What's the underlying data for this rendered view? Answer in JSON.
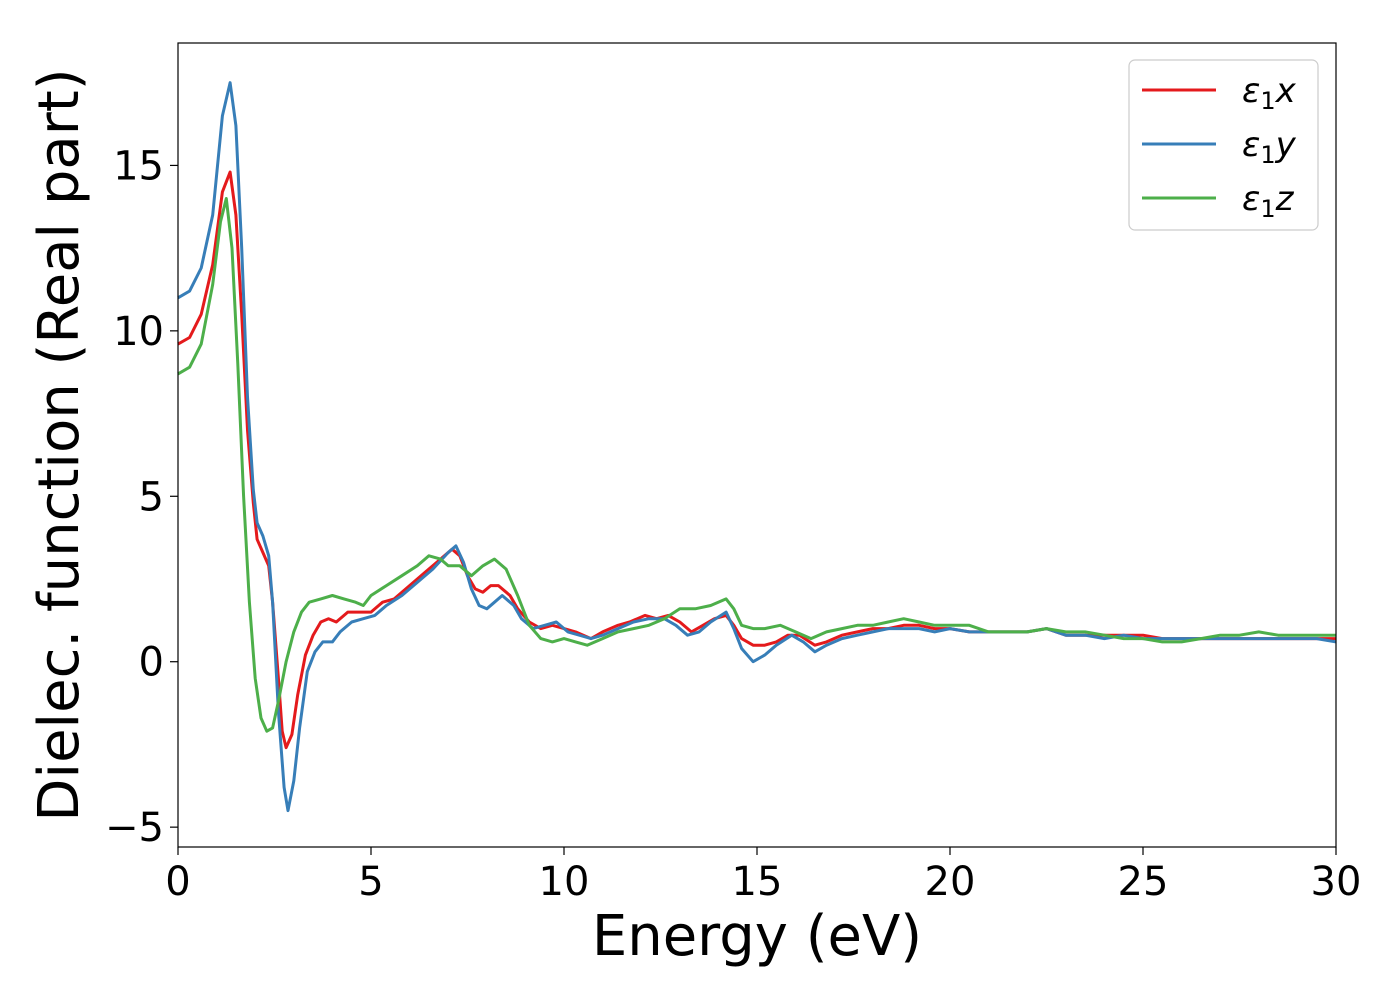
{
  "chart_data": {
    "type": "line",
    "title": "",
    "xlabel": "Energy (eV)",
    "ylabel": "Dielec. function (Real part)",
    "xlim": [
      0,
      30
    ],
    "ylim": [
      -5.6,
      18.7
    ],
    "xticks": [
      0,
      5,
      10,
      15,
      20,
      25,
      30
    ],
    "xtick_labels": [
      "0",
      "5",
      "10",
      "15",
      "20",
      "25",
      "30"
    ],
    "yticks": [
      -5,
      0,
      5,
      10,
      15
    ],
    "ytick_labels": [
      "−5",
      "0",
      "5",
      "10",
      "15"
    ],
    "grid": false,
    "legend_position": "top-right",
    "series": [
      {
        "name": "ε₁x",
        "legend_base": "ε",
        "legend_sub": "1",
        "legend_var": "x",
        "color": "#e41a1c",
        "points": [
          [
            0,
            9.6
          ],
          [
            0.3,
            9.8
          ],
          [
            0.6,
            10.5
          ],
          [
            0.9,
            12.0
          ],
          [
            1.15,
            14.2
          ],
          [
            1.35,
            14.8
          ],
          [
            1.5,
            13.5
          ],
          [
            1.65,
            10.5
          ],
          [
            1.8,
            7.0
          ],
          [
            1.95,
            4.8
          ],
          [
            2.05,
            3.7
          ],
          [
            2.2,
            3.3
          ],
          [
            2.35,
            2.9
          ],
          [
            2.45,
            1.8
          ],
          [
            2.6,
            -0.5
          ],
          [
            2.7,
            -2.1
          ],
          [
            2.8,
            -2.6
          ],
          [
            2.95,
            -2.2
          ],
          [
            3.1,
            -1.0
          ],
          [
            3.3,
            0.2
          ],
          [
            3.5,
            0.8
          ],
          [
            3.7,
            1.2
          ],
          [
            3.9,
            1.3
          ],
          [
            4.1,
            1.2
          ],
          [
            4.4,
            1.5
          ],
          [
            4.7,
            1.5
          ],
          [
            5.0,
            1.5
          ],
          [
            5.3,
            1.8
          ],
          [
            5.6,
            1.9
          ],
          [
            6.0,
            2.3
          ],
          [
            6.4,
            2.7
          ],
          [
            6.8,
            3.1
          ],
          [
            7.1,
            3.4
          ],
          [
            7.3,
            3.2
          ],
          [
            7.5,
            2.6
          ],
          [
            7.7,
            2.2
          ],
          [
            7.9,
            2.1
          ],
          [
            8.1,
            2.3
          ],
          [
            8.3,
            2.3
          ],
          [
            8.6,
            2.0
          ],
          [
            8.8,
            1.6
          ],
          [
            9.1,
            1.2
          ],
          [
            9.4,
            1.0
          ],
          [
            9.7,
            1.1
          ],
          [
            10.0,
            1.0
          ],
          [
            10.3,
            0.9
          ],
          [
            10.7,
            0.7
          ],
          [
            11.0,
            0.9
          ],
          [
            11.4,
            1.1
          ],
          [
            11.7,
            1.2
          ],
          [
            12.1,
            1.4
          ],
          [
            12.4,
            1.3
          ],
          [
            12.7,
            1.4
          ],
          [
            13.0,
            1.2
          ],
          [
            13.3,
            0.9
          ],
          [
            13.6,
            1.1
          ],
          [
            13.9,
            1.3
          ],
          [
            14.2,
            1.4
          ],
          [
            14.4,
            1.1
          ],
          [
            14.6,
            0.7
          ],
          [
            14.9,
            0.5
          ],
          [
            15.2,
            0.5
          ],
          [
            15.5,
            0.6
          ],
          [
            15.8,
            0.8
          ],
          [
            16.1,
            0.8
          ],
          [
            16.5,
            0.5
          ],
          [
            16.8,
            0.6
          ],
          [
            17.2,
            0.8
          ],
          [
            17.6,
            0.9
          ],
          [
            18.0,
            1.0
          ],
          [
            18.4,
            1.0
          ],
          [
            18.8,
            1.1
          ],
          [
            19.2,
            1.1
          ],
          [
            19.6,
            1.0
          ],
          [
            20.0,
            1.0
          ],
          [
            20.5,
            0.9
          ],
          [
            21.0,
            0.9
          ],
          [
            21.5,
            0.9
          ],
          [
            22.0,
            0.9
          ],
          [
            22.5,
            1.0
          ],
          [
            23.0,
            0.8
          ],
          [
            23.5,
            0.8
          ],
          [
            24.0,
            0.8
          ],
          [
            24.5,
            0.8
          ],
          [
            25.0,
            0.8
          ],
          [
            25.5,
            0.7
          ],
          [
            26.0,
            0.7
          ],
          [
            26.5,
            0.7
          ],
          [
            27.0,
            0.7
          ],
          [
            27.5,
            0.7
          ],
          [
            28.0,
            0.7
          ],
          [
            28.5,
            0.7
          ],
          [
            29.0,
            0.7
          ],
          [
            29.5,
            0.7
          ],
          [
            30.0,
            0.7
          ]
        ]
      },
      {
        "name": "ε₁y",
        "legend_base": "ε",
        "legend_sub": "1",
        "legend_var": "y",
        "color": "#377eb8",
        "points": [
          [
            0,
            11.0
          ],
          [
            0.3,
            11.2
          ],
          [
            0.6,
            11.9
          ],
          [
            0.9,
            13.5
          ],
          [
            1.15,
            16.5
          ],
          [
            1.35,
            17.5
          ],
          [
            1.5,
            16.2
          ],
          [
            1.65,
            12.5
          ],
          [
            1.8,
            8.0
          ],
          [
            1.95,
            5.2
          ],
          [
            2.05,
            4.2
          ],
          [
            2.2,
            3.8
          ],
          [
            2.35,
            3.2
          ],
          [
            2.45,
            1.8
          ],
          [
            2.6,
            -1.5
          ],
          [
            2.75,
            -3.8
          ],
          [
            2.85,
            -4.5
          ],
          [
            3.0,
            -3.6
          ],
          [
            3.15,
            -2.0
          ],
          [
            3.35,
            -0.3
          ],
          [
            3.55,
            0.3
          ],
          [
            3.75,
            0.6
          ],
          [
            4.0,
            0.6
          ],
          [
            4.2,
            0.9
          ],
          [
            4.5,
            1.2
          ],
          [
            4.8,
            1.3
          ],
          [
            5.1,
            1.4
          ],
          [
            5.4,
            1.7
          ],
          [
            5.8,
            2.0
          ],
          [
            6.2,
            2.4
          ],
          [
            6.6,
            2.8
          ],
          [
            7.0,
            3.3
          ],
          [
            7.2,
            3.5
          ],
          [
            7.4,
            3.0
          ],
          [
            7.6,
            2.2
          ],
          [
            7.8,
            1.7
          ],
          [
            8.0,
            1.6
          ],
          [
            8.2,
            1.8
          ],
          [
            8.4,
            2.0
          ],
          [
            8.7,
            1.7
          ],
          [
            8.9,
            1.3
          ],
          [
            9.2,
            1.0
          ],
          [
            9.5,
            1.1
          ],
          [
            9.8,
            1.2
          ],
          [
            10.1,
            0.9
          ],
          [
            10.4,
            0.8
          ],
          [
            10.7,
            0.7
          ],
          [
            11.0,
            0.8
          ],
          [
            11.4,
            1.0
          ],
          [
            11.8,
            1.2
          ],
          [
            12.2,
            1.3
          ],
          [
            12.6,
            1.3
          ],
          [
            12.9,
            1.1
          ],
          [
            13.2,
            0.8
          ],
          [
            13.5,
            0.9
          ],
          [
            13.8,
            1.2
          ],
          [
            14.2,
            1.5
          ],
          [
            14.4,
            1.0
          ],
          [
            14.6,
            0.4
          ],
          [
            14.9,
            0.0
          ],
          [
            15.2,
            0.2
          ],
          [
            15.5,
            0.5
          ],
          [
            15.9,
            0.8
          ],
          [
            16.2,
            0.6
          ],
          [
            16.5,
            0.3
          ],
          [
            16.8,
            0.5
          ],
          [
            17.2,
            0.7
          ],
          [
            17.6,
            0.8
          ],
          [
            18.0,
            0.9
          ],
          [
            18.4,
            1.0
          ],
          [
            18.8,
            1.0
          ],
          [
            19.2,
            1.0
          ],
          [
            19.6,
            0.9
          ],
          [
            20.0,
            1.0
          ],
          [
            20.5,
            0.9
          ],
          [
            21.0,
            0.9
          ],
          [
            21.5,
            0.9
          ],
          [
            22.0,
            0.9
          ],
          [
            22.5,
            1.0
          ],
          [
            23.0,
            0.8
          ],
          [
            23.5,
            0.8
          ],
          [
            24.0,
            0.7
          ],
          [
            24.5,
            0.8
          ],
          [
            25.0,
            0.7
          ],
          [
            25.5,
            0.7
          ],
          [
            26.0,
            0.7
          ],
          [
            26.5,
            0.7
          ],
          [
            27.0,
            0.7
          ],
          [
            27.5,
            0.7
          ],
          [
            28.0,
            0.7
          ],
          [
            28.5,
            0.7
          ],
          [
            29.0,
            0.7
          ],
          [
            29.5,
            0.7
          ],
          [
            30.0,
            0.6
          ]
        ]
      },
      {
        "name": "ε₁z",
        "legend_base": "ε",
        "legend_sub": "1",
        "legend_var": "z",
        "color": "#4daf4a",
        "points": [
          [
            0,
            8.7
          ],
          [
            0.3,
            8.9
          ],
          [
            0.6,
            9.6
          ],
          [
            0.9,
            11.4
          ],
          [
            1.1,
            13.3
          ],
          [
            1.25,
            14.0
          ],
          [
            1.4,
            12.5
          ],
          [
            1.55,
            9.0
          ],
          [
            1.7,
            5.0
          ],
          [
            1.85,
            1.8
          ],
          [
            2.0,
            -0.5
          ],
          [
            2.15,
            -1.7
          ],
          [
            2.3,
            -2.1
          ],
          [
            2.45,
            -2.0
          ],
          [
            2.6,
            -1.2
          ],
          [
            2.8,
            0.0
          ],
          [
            3.0,
            0.9
          ],
          [
            3.2,
            1.5
          ],
          [
            3.4,
            1.8
          ],
          [
            3.7,
            1.9
          ],
          [
            4.0,
            2.0
          ],
          [
            4.3,
            1.9
          ],
          [
            4.6,
            1.8
          ],
          [
            4.8,
            1.7
          ],
          [
            5.0,
            2.0
          ],
          [
            5.4,
            2.3
          ],
          [
            5.8,
            2.6
          ],
          [
            6.2,
            2.9
          ],
          [
            6.5,
            3.2
          ],
          [
            6.8,
            3.1
          ],
          [
            7.0,
            2.9
          ],
          [
            7.3,
            2.9
          ],
          [
            7.6,
            2.6
          ],
          [
            7.9,
            2.9
          ],
          [
            8.2,
            3.1
          ],
          [
            8.5,
            2.8
          ],
          [
            8.8,
            2.0
          ],
          [
            9.1,
            1.1
          ],
          [
            9.4,
            0.7
          ],
          [
            9.7,
            0.6
          ],
          [
            10.0,
            0.7
          ],
          [
            10.3,
            0.6
          ],
          [
            10.6,
            0.5
          ],
          [
            11.0,
            0.7
          ],
          [
            11.4,
            0.9
          ],
          [
            11.8,
            1.0
          ],
          [
            12.2,
            1.1
          ],
          [
            12.6,
            1.3
          ],
          [
            13.0,
            1.6
          ],
          [
            13.4,
            1.6
          ],
          [
            13.8,
            1.7
          ],
          [
            14.2,
            1.9
          ],
          [
            14.4,
            1.6
          ],
          [
            14.6,
            1.1
          ],
          [
            14.9,
            1.0
          ],
          [
            15.2,
            1.0
          ],
          [
            15.6,
            1.1
          ],
          [
            16.0,
            0.9
          ],
          [
            16.4,
            0.7
          ],
          [
            16.8,
            0.9
          ],
          [
            17.2,
            1.0
          ],
          [
            17.6,
            1.1
          ],
          [
            18.0,
            1.1
          ],
          [
            18.4,
            1.2
          ],
          [
            18.8,
            1.3
          ],
          [
            19.2,
            1.2
          ],
          [
            19.6,
            1.1
          ],
          [
            20.0,
            1.1
          ],
          [
            20.5,
            1.1
          ],
          [
            21.0,
            0.9
          ],
          [
            21.5,
            0.9
          ],
          [
            22.0,
            0.9
          ],
          [
            22.5,
            1.0
          ],
          [
            23.0,
            0.9
          ],
          [
            23.5,
            0.9
          ],
          [
            24.0,
            0.8
          ],
          [
            24.5,
            0.7
          ],
          [
            25.0,
            0.7
          ],
          [
            25.5,
            0.6
          ],
          [
            26.0,
            0.6
          ],
          [
            26.5,
            0.7
          ],
          [
            27.0,
            0.8
          ],
          [
            27.5,
            0.8
          ],
          [
            28.0,
            0.9
          ],
          [
            28.5,
            0.8
          ],
          [
            29.0,
            0.8
          ],
          [
            29.5,
            0.8
          ],
          [
            30.0,
            0.8
          ]
        ]
      }
    ]
  }
}
